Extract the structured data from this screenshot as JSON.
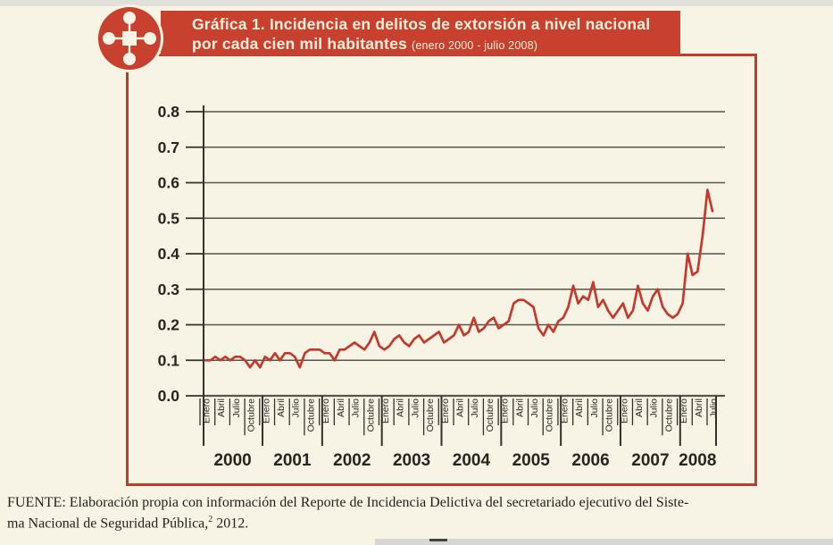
{
  "page": {
    "background": "#f8f4e5",
    "top_strip_color": "#e2e0da",
    "bottom_strip_color": "#d8d6d0"
  },
  "banner": {
    "color": "#c8402e",
    "text_color": "#fcf0dc",
    "title_line1": "Gráfica 1. Incidencia en delitos de extorsión a nivel nacional",
    "title_line2": "por cada cien mil habitantes",
    "title_period": "(enero 2000 - julio 2008)"
  },
  "icon": {
    "name": "hub-emblem-icon",
    "color": "#c8402e"
  },
  "frame": {
    "border_color": "#c23a28"
  },
  "source_note": {
    "line1": "FUENTE: Elaboración propia con información del Reporte de Incidencia Delictiva del secretariado ejecutivo del Siste-",
    "line2_pre": "ma Nacional de Seguridad Pública,",
    "footnote_marker": "2",
    "line2_post": " 2012."
  },
  "chart_data": {
    "type": "line",
    "title": "Gráfica 1. Incidencia en delitos de extorsión a nivel nacional por cada cien mil habitantes",
    "subtitle": "(enero 2000 - julio 2008)",
    "x_unit": "month",
    "x_start": "enero 2000",
    "x_end": "julio 2008",
    "ylim": [
      0,
      0.8
    ],
    "ytick_step": 0.1,
    "yticks": [
      0.0,
      0.1,
      0.2,
      0.3,
      0.4,
      0.5,
      0.6,
      0.7,
      0.8
    ],
    "grid": "horizontal",
    "legend": "none",
    "line_color": "#c5392c",
    "axis_color": "#56554b",
    "tick_color": "#32312a",
    "years": [
      "2000",
      "2001",
      "2002",
      "2003",
      "2004",
      "2005",
      "2006",
      "2007",
      "2008"
    ],
    "month_tick_labels": [
      "Enero",
      "Abril",
      "Julio",
      "Octubre"
    ],
    "series_name": "Incidencia en delitos de extorsión por cada cien mil habitantes",
    "values": [
      0.1,
      0.1,
      0.11,
      0.1,
      0.11,
      0.1,
      0.11,
      0.11,
      0.1,
      0.08,
      0.1,
      0.08,
      0.11,
      0.1,
      0.12,
      0.1,
      0.12,
      0.12,
      0.11,
      0.08,
      0.12,
      0.13,
      0.13,
      0.13,
      0.12,
      0.12,
      0.1,
      0.13,
      0.13,
      0.14,
      0.15,
      0.14,
      0.13,
      0.15,
      0.18,
      0.14,
      0.13,
      0.14,
      0.16,
      0.17,
      0.15,
      0.14,
      0.16,
      0.17,
      0.15,
      0.16,
      0.17,
      0.18,
      0.15,
      0.16,
      0.17,
      0.2,
      0.17,
      0.18,
      0.22,
      0.18,
      0.19,
      0.21,
      0.22,
      0.19,
      0.2,
      0.21,
      0.26,
      0.27,
      0.27,
      0.26,
      0.25,
      0.19,
      0.17,
      0.2,
      0.18,
      0.21,
      0.22,
      0.25,
      0.31,
      0.26,
      0.28,
      0.27,
      0.32,
      0.25,
      0.27,
      0.24,
      0.22,
      0.24,
      0.26,
      0.22,
      0.24,
      0.31,
      0.26,
      0.24,
      0.28,
      0.3,
      0.25,
      0.23,
      0.22,
      0.23,
      0.26,
      0.4,
      0.34,
      0.35,
      0.45,
      0.58,
      0.52
    ]
  }
}
